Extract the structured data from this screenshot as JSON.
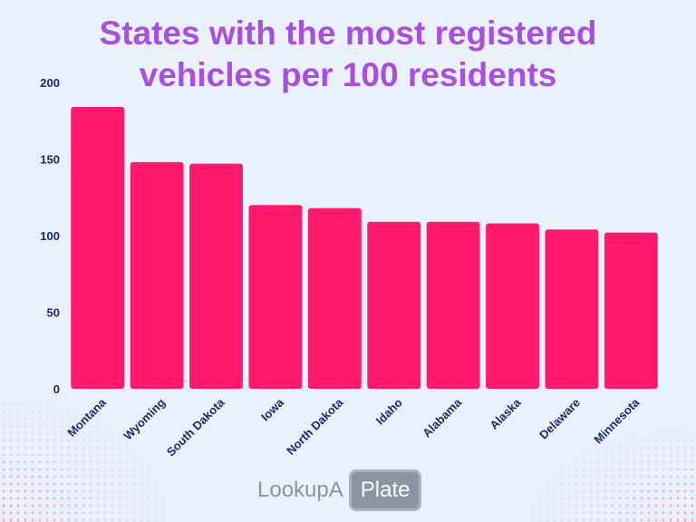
{
  "chart_data": {
    "type": "bar",
    "title": "States with the most registered vehicles per 100 residents",
    "categories": [
      "Montana",
      "Wyoming",
      "South Dakota",
      "Iowa",
      "North Dakota",
      "Idaho",
      "Alabama",
      "Alaska",
      "Delaware",
      "Minnesota"
    ],
    "values": [
      184,
      148,
      147,
      120,
      118,
      109,
      109,
      108,
      104,
      102
    ],
    "color": "#ff1a6c",
    "ylim": [
      0,
      200
    ],
    "yticks": [
      0,
      50,
      100,
      150,
      200
    ],
    "grid": false
  },
  "logo": {
    "left": "LookupA",
    "right": "Plate"
  }
}
